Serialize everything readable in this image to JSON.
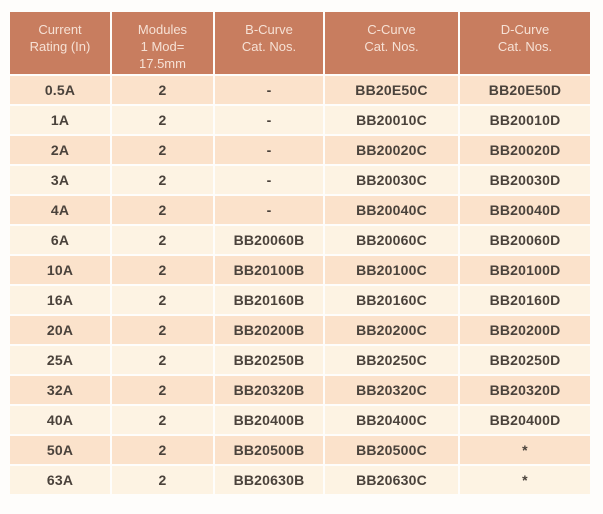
{
  "colors": {
    "header_bg": "#c87d5f",
    "header_text": "#f6e1d5",
    "row_light_bg": "#fdf3e3",
    "row_dark_bg": "#fbe2cb",
    "cell_text": "#4a423b",
    "page_bg": "#fefdfb"
  },
  "table": {
    "headers": [
      "Current\nRating (In)",
      "Modules\n1 Mod=\n17.5mm",
      "B-Curve\nCat. Nos.",
      "C-Curve\nCat. Nos.",
      "D-Curve\nCat. Nos."
    ],
    "rows": [
      [
        "0.5A",
        "2",
        "-",
        "BB20E50C",
        "BB20E50D"
      ],
      [
        "1A",
        "2",
        "-",
        "BB20010C",
        "BB20010D"
      ],
      [
        "2A",
        "2",
        "-",
        "BB20020C",
        "BB20020D"
      ],
      [
        "3A",
        "2",
        "-",
        "BB20030C",
        "BB20030D"
      ],
      [
        "4A",
        "2",
        "-",
        "BB20040C",
        "BB20040D"
      ],
      [
        "6A",
        "2",
        "BB20060B",
        "BB20060C",
        "BB20060D"
      ],
      [
        "10A",
        "2",
        "BB20100B",
        "BB20100C",
        "BB20100D"
      ],
      [
        "16A",
        "2",
        "BB20160B",
        "BB20160C",
        "BB20160D"
      ],
      [
        "20A",
        "2",
        "BB20200B",
        "BB20200C",
        "BB20200D"
      ],
      [
        "25A",
        "2",
        "BB20250B",
        "BB20250C",
        "BB20250D"
      ],
      [
        "32A",
        "2",
        "BB20320B",
        "BB20320C",
        "BB20320D"
      ],
      [
        "40A",
        "2",
        "BB20400B",
        "BB20400C",
        "BB20400D"
      ],
      [
        "50A",
        "2",
        "BB20500B",
        "BB20500C",
        "*"
      ],
      [
        "63A",
        "2",
        "BB20630B",
        "BB20630C",
        "*"
      ]
    ]
  }
}
